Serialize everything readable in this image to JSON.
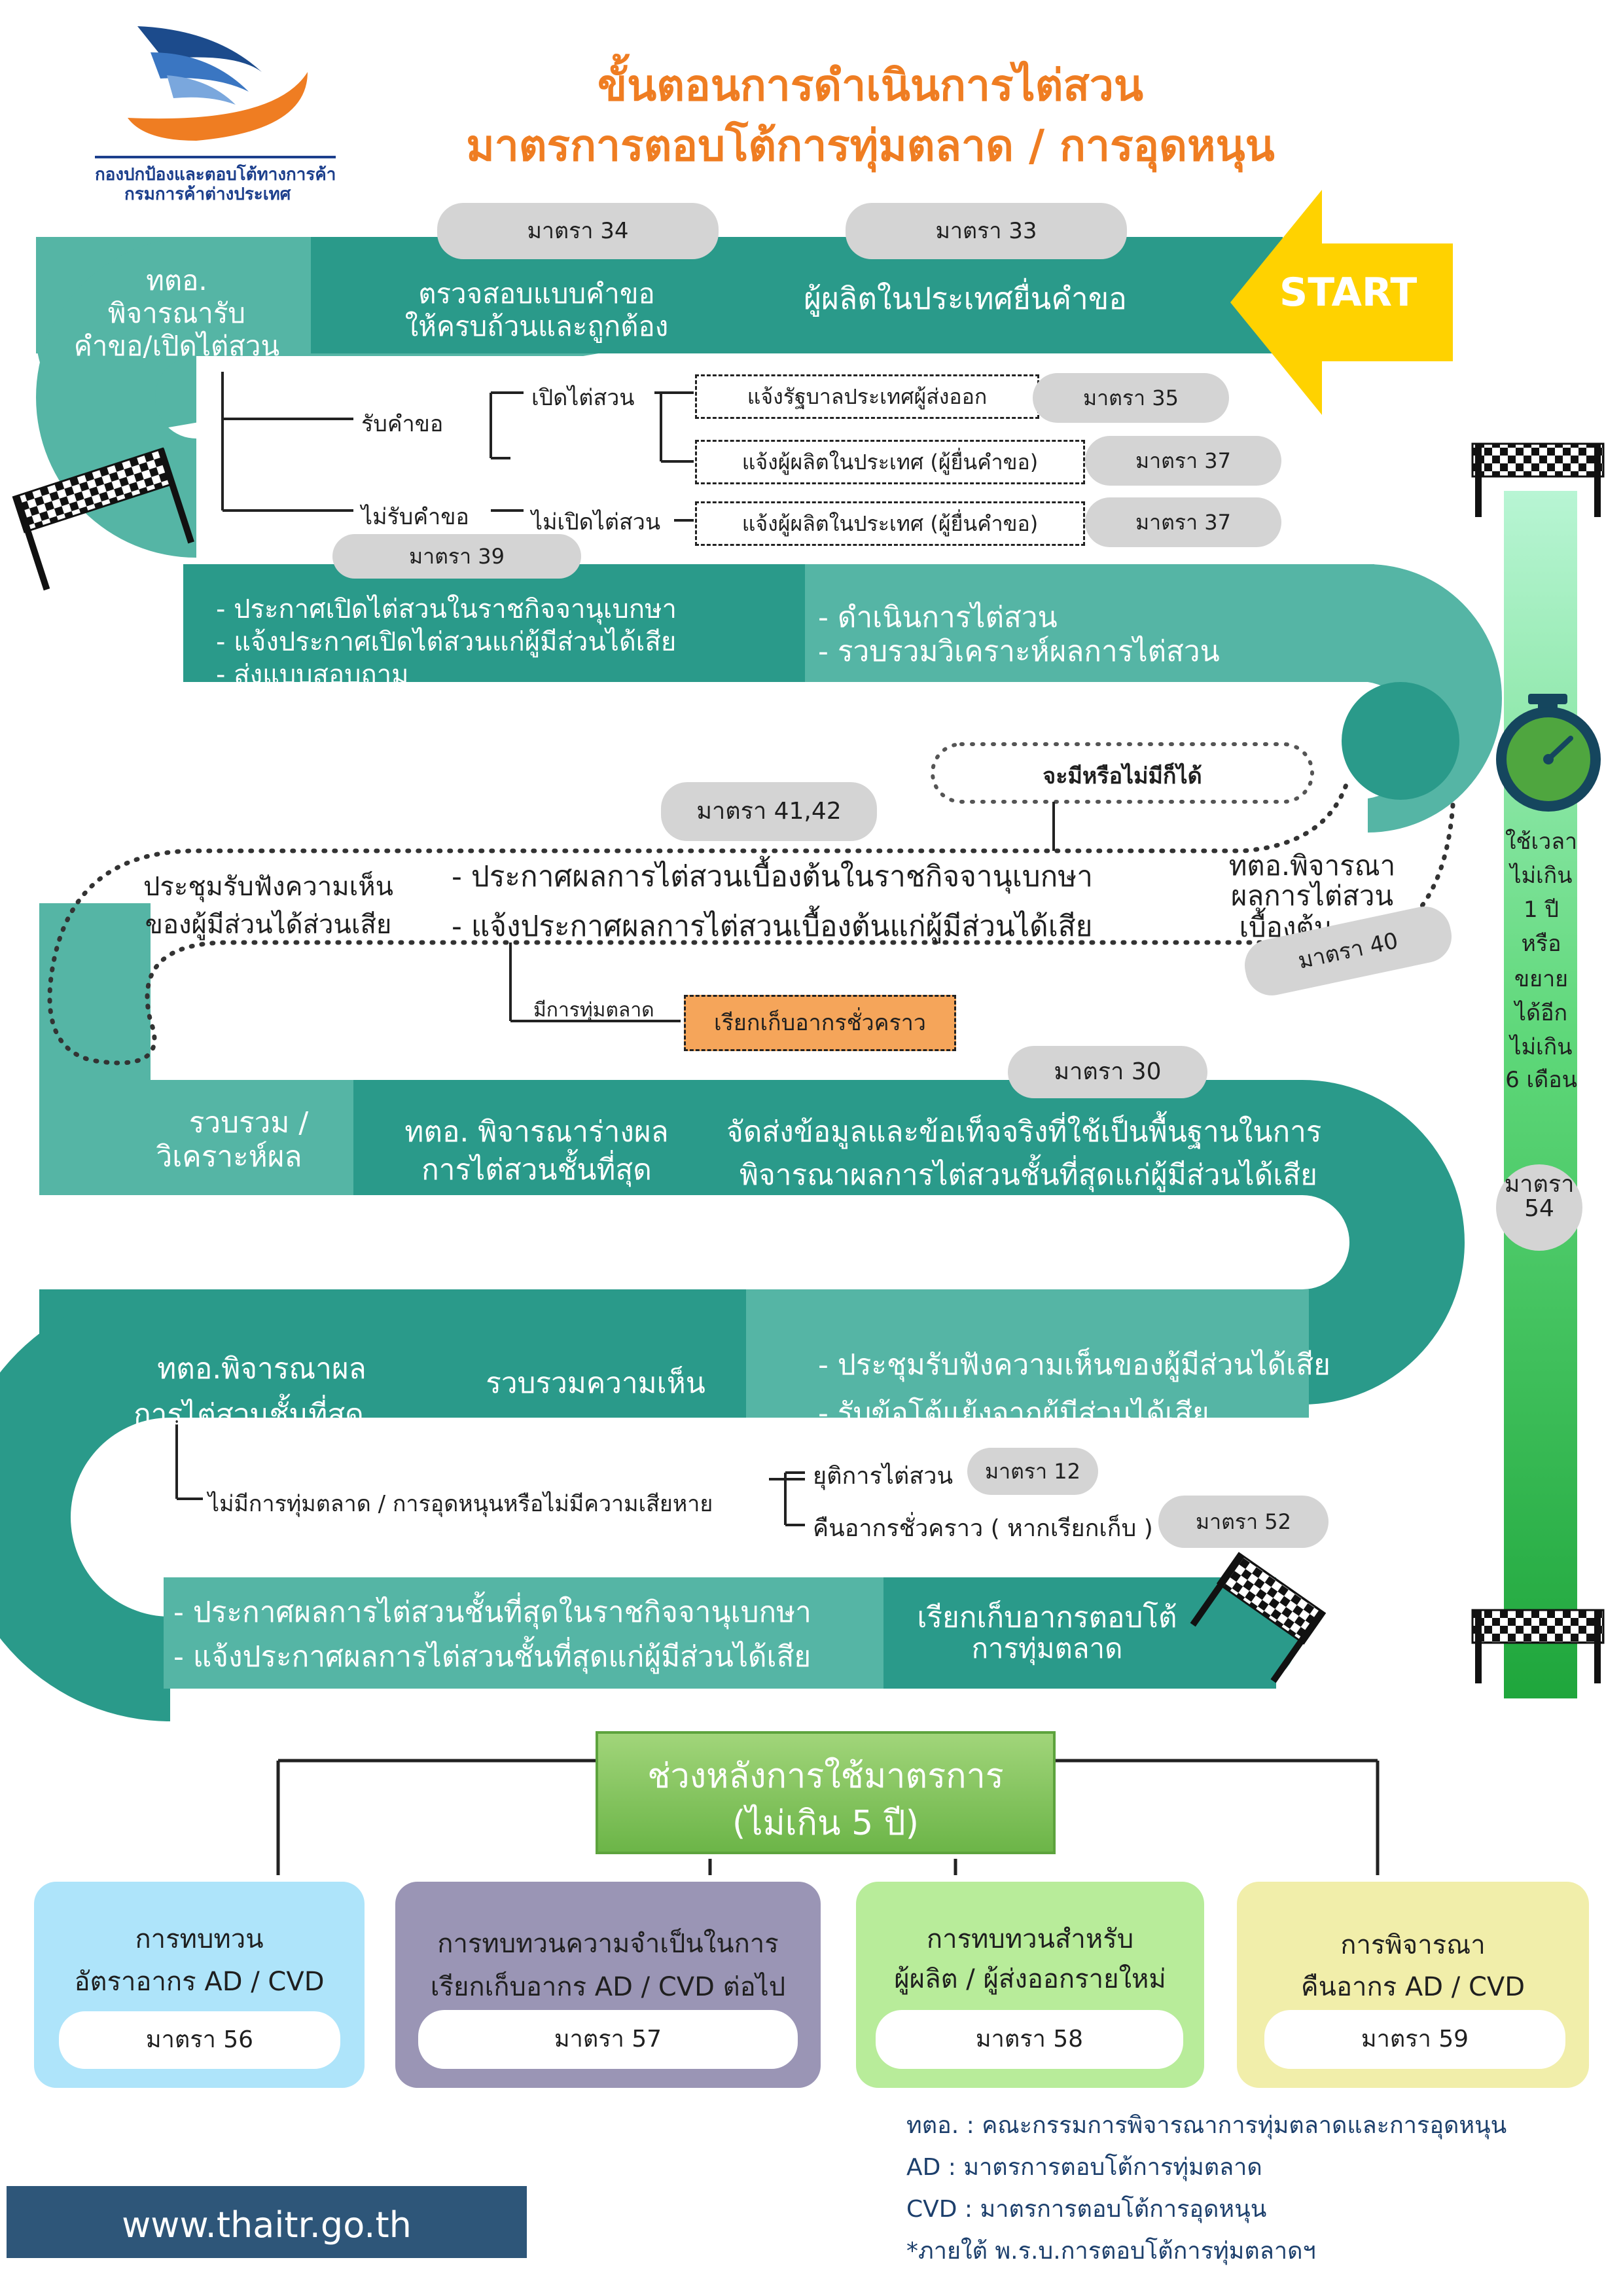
{
  "org": {
    "name_line1": "กองปกป้องและตอบโต้ทางการค้า",
    "name_line2": "กรมการค้าต่างประเทศ"
  },
  "title": {
    "line1": "ขั้นตอนการดำเนินการไต่สวน",
    "line2": "มาตรการตอบโต้การทุ่มตลาด / การอุดหนุน"
  },
  "colors": {
    "title": "#ef7d22",
    "road_dark": "#2a9a8a",
    "road_light": "#55b5a5",
    "start_arrow": "#ffd200",
    "pill": "#d4d4d4",
    "provisional": "#f5a55a",
    "after_header": "#7dbd4f",
    "timer_bar": "#3cbd5c"
  },
  "icons": [
    "checkered-flag-icon",
    "stopwatch-icon",
    "start-arrow-icon",
    "logo-icon"
  ],
  "start_label": "START",
  "row1": {
    "article_33": "มาตรา 33",
    "article_34": "มาตรา 34",
    "step_submit": "ผู้ผลิตในประเทศยื่นคำขอ",
    "step_check_1": "ตรวจสอบแบบคำขอ",
    "step_check_2": "ให้ครบถ้วนและถูกต้อง",
    "step_consider_1": "ทตอ.",
    "step_consider_2": "พิจารณารับ",
    "step_consider_3": "คำขอ/เปิดไต่สวน"
  },
  "decision": {
    "accept": "รับคำขอ",
    "reject": "ไม่รับคำขอ",
    "open": "เปิดไต่สวน",
    "not_open": "ไม่เปิดไต่สวน",
    "notify_exporter_gov": "แจ้งรัฐบาลประเทศผู้ส่งออก",
    "notify_producer_open": "แจ้งผู้ผลิตในประเทศ (ผู้ยื่นคำขอ)",
    "notify_producer_reject": "แจ้งผู้ผลิตในประเทศ (ผู้ยื่นคำขอ)",
    "article_35": "มาตรา 35",
    "article_37a": "มาตรา 37",
    "article_37b": "มาตรา 37",
    "article_39": "มาตรา 39"
  },
  "row2": {
    "announce_1": "- ประกาศเปิดไต่สวนในราชกิจจานุเบกษา",
    "announce_2": "- แจ้งประกาศเปิดไต่สวนแก่ผู้มีส่วนได้เสีย",
    "announce_3": "- ส่งแบบสอบถาม",
    "conduct_1": "- ดำเนินการไต่สวน",
    "conduct_2": "- รวบรวมวิเคราะห์ผลการไต่สวน"
  },
  "row3": {
    "optional": "จะมีหรือไม่มีก็ได้",
    "article_41_42": "มาตรา 41,42",
    "prelim_consider_1": "ทตอ.พิจารณา",
    "prelim_consider_2": "ผลการไต่สวน",
    "prelim_consider_3": "เบื้องต้น",
    "article_40": "มาตรา 40",
    "prelim_announce_1": "- ประกาศผลการไต่สวนเบื้องต้นในราชกิจจานุเบกษา",
    "prelim_announce_2": "- แจ้งประกาศผลการไต่สวนเบื้องต้นแก่ผู้มีส่วนได้เสีย",
    "hearing_1": "ประชุมรับฟังความเห็น",
    "hearing_2": "ของผู้มีส่วนได้ส่วนเสีย",
    "dumping_found": "มีการทุ่มตลาด",
    "provisional_duty": "เรียกเก็บอากรชั่วคราว"
  },
  "row4": {
    "article_30": "มาตรา 30",
    "collect_1": "รวบรวม /",
    "collect_2": "วิเคราะห์ผล",
    "draft_1": "ทตอ. พิจารณาร่างผล",
    "draft_2": "การไต่สวนชั้นที่สุด",
    "disclose_1": "จัดส่งข้อมูลและข้อเท็จจริงที่ใช้เป็นพื้นฐานในการ",
    "disclose_2": "พิจารณาผลการไต่สวนชั้นที่สุดแก่ผู้มีส่วนได้เสีย"
  },
  "row5": {
    "final_1": "ทตอ.พิจารณาผล",
    "final_2": "การไต่สวนชั้นที่สุด",
    "gather": "รวบรวมความเห็น",
    "hearing_1": "- ประชุมรับฟังความเห็นของผู้มีส่วนได้เสีย",
    "hearing_2": "- รับข้อโต้แย้งจากผู้มีส่วนได้เสีย"
  },
  "branch": {
    "no_dumping": "ไม่มีการทุ่มตลาด / การอุดหนุนหรือไม่มีความเสียหาย",
    "terminate": "ยุติการไต่สวน",
    "refund": "คืนอากรชั่วคราว ( หากเรียกเก็บ )",
    "article_12": "มาตรา 12",
    "article_52": "มาตรา 52"
  },
  "row6": {
    "final_announce_1": "- ประกาศผลการไต่สวนชั้นที่สุดในราชกิจจานุเบกษา",
    "final_announce_2": "- แจ้งประกาศผลการไต่สวนชั้นที่สุดแก่ผู้มีส่วนได้เสีย",
    "impose_1": "เรียกเก็บอากรตอบโต้",
    "impose_2": "การทุ่มตลาด"
  },
  "timer": {
    "line1": "ใช้เวลา",
    "line2": "ไม่เกิน",
    "line3": "1 ปี",
    "line4": "หรือ",
    "line5": "ขยาย",
    "line6": "ได้อีก",
    "line7": "ไม่เกิน",
    "line8": "6 เดือน",
    "article_1": "มาตรา",
    "article_2": "54"
  },
  "after": {
    "header_1": "ช่วงหลังการใช้มาตรการ",
    "header_2": "(ไม่เกิน 5 ปี)",
    "boxes": [
      {
        "line1": "การทบทวน",
        "line2": "อัตราอากร AD / CVD",
        "article": "มาตรา 56",
        "color": "#aee4fa"
      },
      {
        "line1": "การทบทวนความจำเป็นในการ",
        "line2": "เรียกเก็บอากร  AD / CVD ต่อไป",
        "article": "มาตรา 57",
        "color": "#9a95b5"
      },
      {
        "line1": "การทบทวนสำหรับ",
        "line2": "ผู้ผลิต / ผู้ส่งออกรายใหม่",
        "article": "มาตรา 58",
        "color": "#b8ec9a"
      },
      {
        "line1": "การพิจารณา",
        "line2": "คืนอากร AD / CVD",
        "article": "มาตรา 59",
        "color": "#f1eeaa"
      }
    ]
  },
  "legend": {
    "l1": "ทตอ. : คณะกรรมการพิจารณาการทุ่มตลาดและการอุดหนุน",
    "l2": "AD    : มาตรการตอบโต้การทุ่มตลาด",
    "l3": "CVD : มาตรการตอบโต้การอุดหนุน",
    "l4": "*ภายใต้ พ.ร.บ.การตอบโต้การทุ่มตลาดฯ"
  },
  "website": "www.thaitr.go.th"
}
